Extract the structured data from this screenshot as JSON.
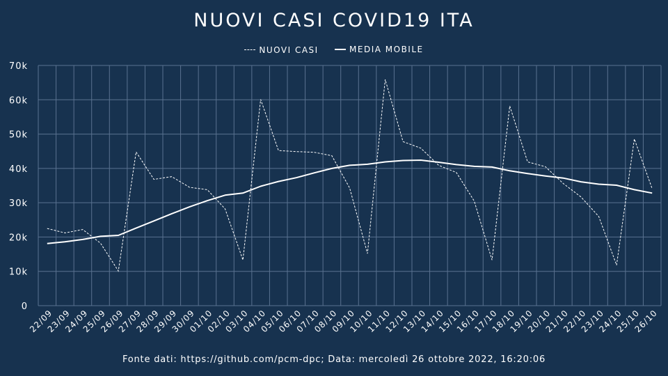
{
  "colors": {
    "background": "#17324f",
    "grid": "#5a7290",
    "line": "#ffffff"
  },
  "chart_data": {
    "type": "line",
    "title": "NUOVI CASI COVID19 ITA",
    "legend_position": "top-center",
    "grid": true,
    "ylim": [
      0,
      70000
    ],
    "yticks": [
      0,
      10000,
      20000,
      30000,
      40000,
      50000,
      60000,
      70000
    ],
    "ytick_labels": [
      "0",
      "10k",
      "20k",
      "30k",
      "40k",
      "50k",
      "60k",
      "70k"
    ],
    "categories": [
      "22/09",
      "23/09",
      "24/09",
      "25/09",
      "26/09",
      "27/09",
      "28/09",
      "29/09",
      "30/09",
      "01/10",
      "02/10",
      "03/10",
      "04/10",
      "05/10",
      "06/10",
      "07/10",
      "08/10",
      "09/10",
      "10/10",
      "11/10",
      "12/10",
      "13/10",
      "14/10",
      "15/10",
      "16/10",
      "17/10",
      "18/10",
      "19/10",
      "20/10",
      "21/10",
      "22/10",
      "23/10",
      "24/10",
      "25/10",
      "26/10"
    ],
    "series": [
      {
        "name": "NUOVI CASI",
        "style": "dashed",
        "values": [
          22500,
          21200,
          22200,
          18200,
          10100,
          44800,
          36800,
          37600,
          34500,
          33800,
          28200,
          13300,
          60100,
          45200,
          44900,
          44700,
          43700,
          34300,
          15200,
          65900,
          47800,
          45900,
          40900,
          38800,
          30500,
          13300,
          58200,
          41900,
          40500,
          35600,
          31700,
          26000,
          11800,
          48600,
          34100
        ]
      },
      {
        "name": "MEDIA MOBILE",
        "style": "solid",
        "values": [
          18100,
          18600,
          19300,
          20200,
          20500,
          22600,
          24700,
          26800,
          28800,
          30600,
          32200,
          32800,
          34800,
          36200,
          37300,
          38700,
          40000,
          40900,
          41200,
          41900,
          42300,
          42400,
          41800,
          41100,
          40600,
          40400,
          39300,
          38500,
          37800,
          37200,
          36100,
          35400,
          35100,
          33800,
          32800
        ]
      }
    ]
  },
  "footer": {
    "text": "Fonte dati: https://github.com/pcm-dpc; Data: mercoledì 26 ottobre 2022, 16:20:06"
  }
}
